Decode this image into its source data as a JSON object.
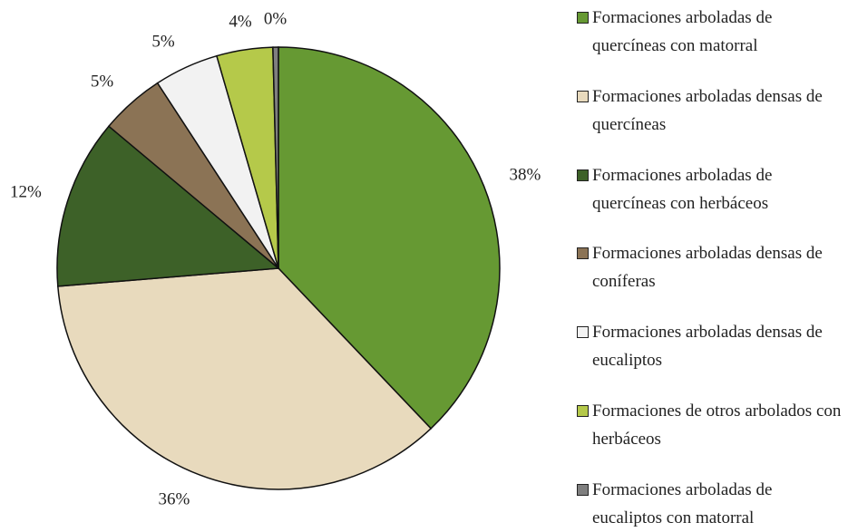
{
  "chart_data": {
    "type": "pie",
    "categories": [
      "Formaciones arboladas de quercíneas con matorral",
      "Formaciones arboladas densas de quercíneas",
      "Formaciones arboladas de quercíneas con herbáceos",
      "Formaciones arboladas densas de coníferas",
      "Formaciones arboladas densas de eucaliptos",
      "Formaciones de otros arbolados con herbáceos",
      "Formaciones arboladas de eucaliptos con matorral"
    ],
    "values": [
      37.9,
      35.8,
      12.4,
      4.7,
      4.7,
      4.1,
      0.4
    ],
    "value_labels": [
      "38%",
      "36%",
      "12%",
      "5%",
      "5%",
      "4%",
      "0%"
    ],
    "colors": [
      "#669933",
      "#e8dabd",
      "#3d6128",
      "#8b7355",
      "#f2f2f2",
      "#b5c94a",
      "#7f7f7f"
    ],
    "legend": "right"
  }
}
